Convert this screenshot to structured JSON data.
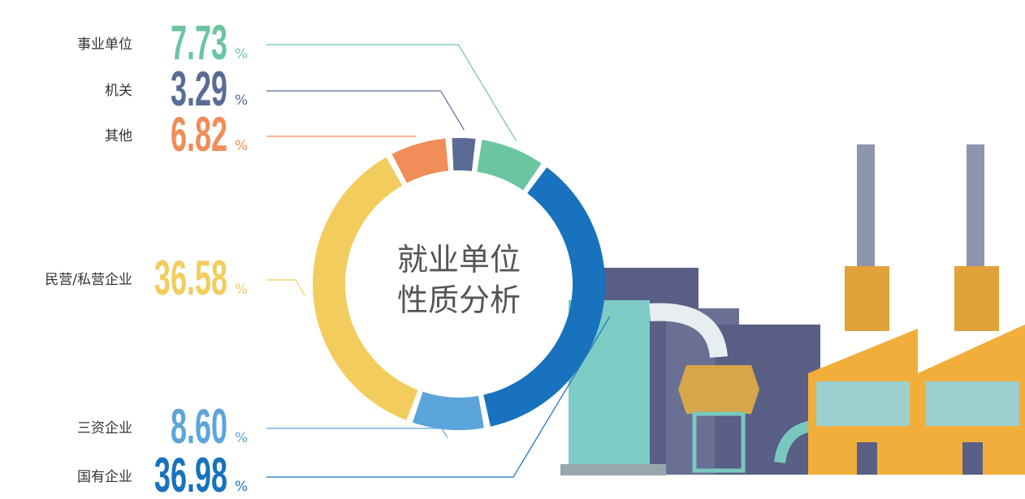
{
  "chart_data": {
    "type": "pie",
    "donut": true,
    "title": "就业单位性质分析",
    "categories": [
      "事业单位",
      "机关",
      "其他",
      "民营/私营企业",
      "三资企业",
      "国有企业"
    ],
    "values": [
      7.73,
      3.29,
      6.82,
      36.58,
      8.6,
      36.98
    ],
    "value_labels": [
      "7.73",
      "3.29",
      "6.82",
      "36.58",
      "8.60",
      "36.98"
    ],
    "unit": "%",
    "colors": [
      "#6cc5a1",
      "#5a6b95",
      "#f08d58",
      "#f2cd5e",
      "#5ca5da",
      "#1872bd"
    ]
  }
}
